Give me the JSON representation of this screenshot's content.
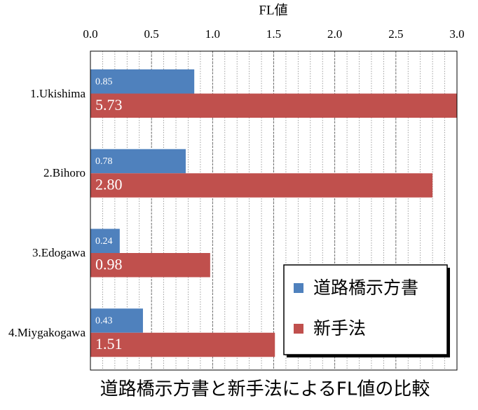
{
  "chart_data": {
    "type": "bar",
    "orientation": "horizontal",
    "title": "道路橋示方書と新手法によるFL値の比較",
    "x_label": "FL値",
    "categories": [
      "1.Ukishima",
      "2.Bihoro",
      "3.Edogawa",
      "4.Miygakogawa"
    ],
    "series": [
      {
        "name": "道路橋示方書",
        "color": "#4f81bd",
        "values": [
          0.85,
          0.78,
          0.24,
          0.43
        ],
        "value_labels": [
          "0.85",
          "0.78",
          "0.24",
          "0.43"
        ]
      },
      {
        "name": "新手法",
        "color": "#c0504d",
        "values": [
          5.73,
          2.8,
          0.98,
          1.51
        ],
        "value_labels": [
          "5.73",
          "2.80",
          "0.98",
          "1.51"
        ]
      }
    ],
    "xlim": [
      0,
      3
    ],
    "xticks": [
      {
        "value": 0,
        "label": "0.0"
      },
      0.5,
      {
        "value": 1,
        "label": "1.0"
      },
      1.5,
      {
        "value": 2,
        "label": "2.0"
      },
      2.5,
      {
        "value": 3,
        "label": "3.0"
      }
    ],
    "grid": true,
    "legend": "lower right"
  }
}
